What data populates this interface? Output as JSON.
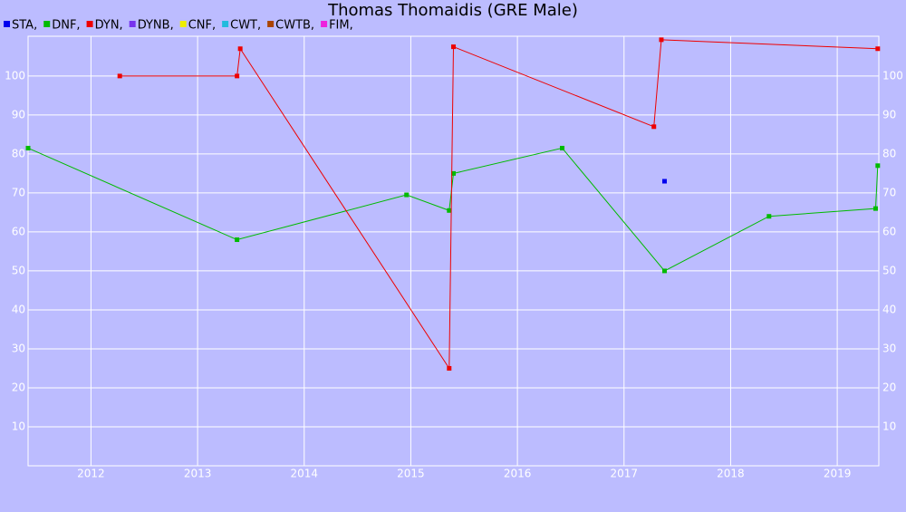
{
  "chart_data": {
    "type": "line",
    "title": "Thomas Thomaidis (GRE Male)",
    "series": [
      {
        "name": "STA,",
        "color": "#0000ee",
        "x": [
          2017.38
        ],
        "values": [
          73
        ]
      },
      {
        "name": "DNF,",
        "color": "#00bb00",
        "x": [
          2011.41,
          2013.37,
          2014.96,
          2015.36,
          2015.4,
          2016.42,
          2017.38,
          2018.36,
          2019.36,
          2019.38
        ],
        "values": [
          81.5,
          58,
          69.5,
          65.5,
          75,
          81.5,
          50,
          64,
          66,
          77
        ]
      },
      {
        "name": "DYN,",
        "color": "#ee0000",
        "x": [
          2012.27,
          2013.37,
          2013.4,
          2015.36,
          2015.4,
          2017.28,
          2017.35,
          2019.38
        ],
        "values": [
          100,
          100,
          107,
          25,
          107.5,
          87,
          109.3,
          107
        ]
      },
      {
        "name": "DYNB,",
        "color": "#7733ee",
        "x": [],
        "values": []
      },
      {
        "name": "CNF,",
        "color": "#eeee00",
        "x": [],
        "values": []
      },
      {
        "name": "CWT,",
        "color": "#22bbdd",
        "x": [],
        "values": []
      },
      {
        "name": "CWTB,",
        "color": "#aa4400",
        "x": [],
        "values": []
      },
      {
        "name": "FIM,",
        "color": "#ee22dd",
        "x": [],
        "values": []
      }
    ],
    "xlim": [
      2011.41,
      2019.39
    ],
    "xticks": [
      2012,
      2013,
      2014,
      2015,
      2016,
      2017,
      2018,
      2019
    ],
    "ylim": [
      0,
      110.2
    ],
    "yticks": [
      10,
      20,
      30,
      40,
      50,
      60,
      70,
      80,
      90,
      100
    ],
    "grid": true
  }
}
